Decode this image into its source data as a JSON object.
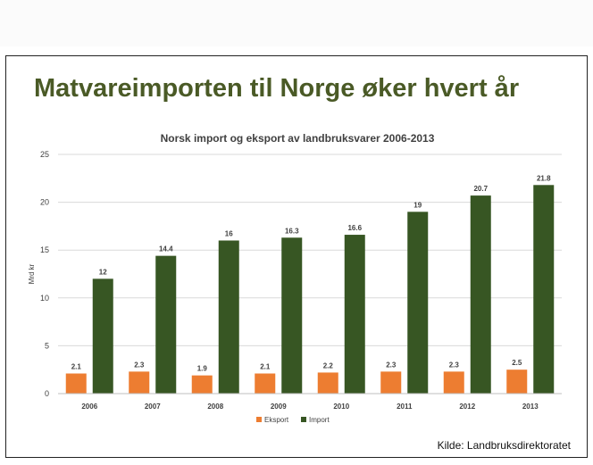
{
  "slide": {
    "title": "Matvareimporten til Norge øker hvert år",
    "source": "Kilde: Landbruksdirektoratet"
  },
  "colors": {
    "title": "#4a5a26",
    "eksport": "#ed7d31",
    "import": "#375623",
    "gridline": "#d9d9d9",
    "axis_text": "#404040"
  },
  "chart_data": {
    "type": "bar",
    "title": "Norsk import og eksport av landbruksvarer 2006-2013",
    "xlabel": "",
    "ylabel": "Mrd kr",
    "ylim": [
      0,
      25
    ],
    "yticks": [
      0,
      5,
      10,
      15,
      20,
      25
    ],
    "grid": true,
    "legend_position": "bottom",
    "categories": [
      "2006",
      "2007",
      "2008",
      "2009",
      "2010",
      "2011",
      "2012",
      "2013"
    ],
    "series": [
      {
        "name": "Eksport",
        "values": [
          2.1,
          2.3,
          1.9,
          2.1,
          2.2,
          2.3,
          2.3,
          2.5
        ]
      },
      {
        "name": "Import",
        "values": [
          12,
          14.4,
          16,
          16.3,
          16.6,
          19,
          20.7,
          21.8
        ]
      }
    ]
  }
}
